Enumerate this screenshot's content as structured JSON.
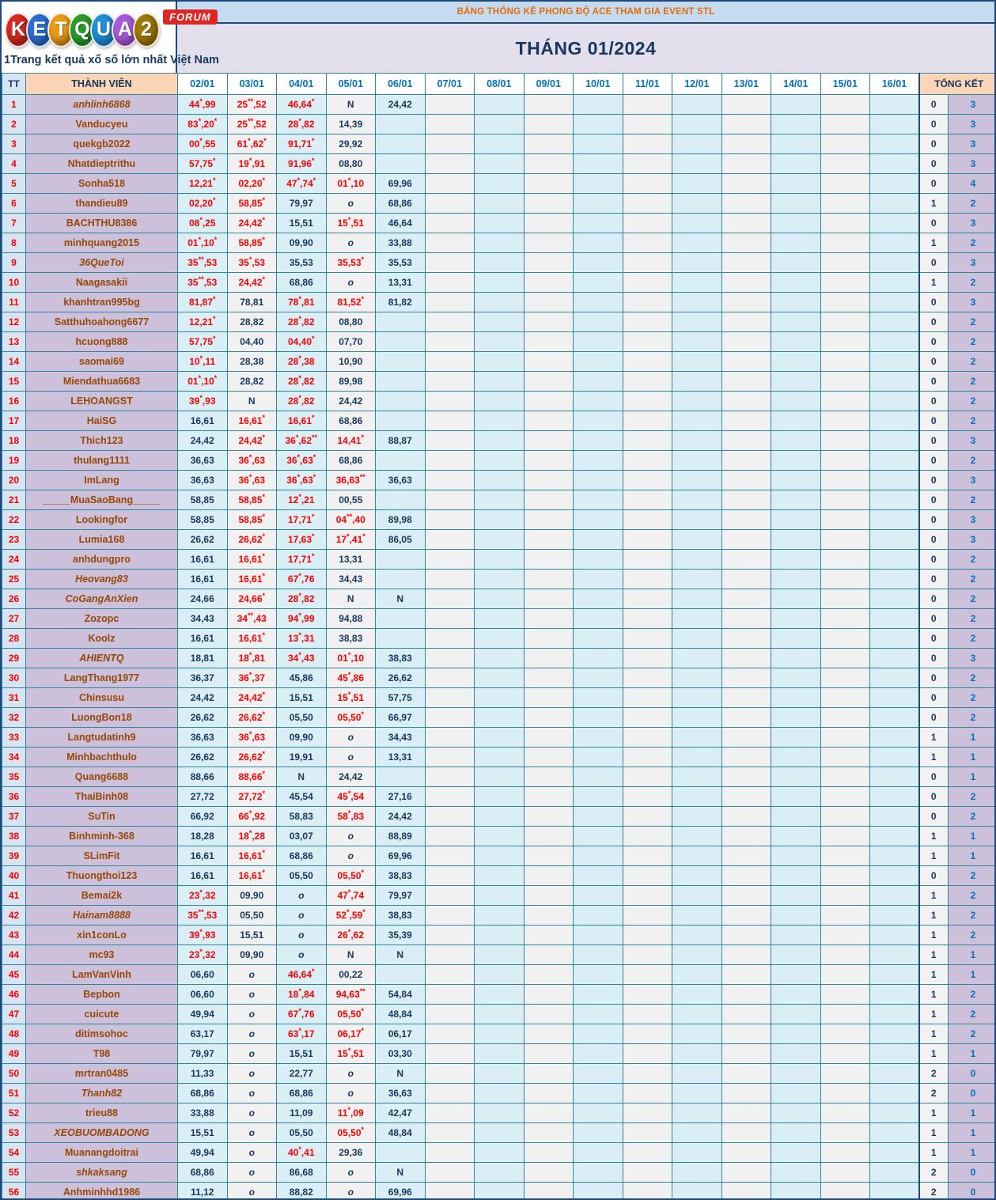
{
  "logo": {
    "letters": [
      {
        "ch": "K",
        "color": "#d42a1e"
      },
      {
        "ch": "E",
        "color": "#2a6fd4"
      },
      {
        "ch": "T",
        "color": "#e89c1a"
      },
      {
        "ch": "Q",
        "color": "#2a9b2a"
      },
      {
        "ch": "U",
        "color": "#1e8ed8"
      },
      {
        "ch": "A",
        "color": "#a85ad8"
      },
      {
        "ch": "2",
        "color": "#a07808"
      }
    ],
    "badge": "FORUM",
    "tagline": "1Trang kết quả xổ số lớn nhất Việt Nam"
  },
  "banner": {
    "title": "BẢNG THỐNG KÊ PHONG ĐỘ ACE THAM GIA EVENT STL",
    "month": "THÁNG 01/2024"
  },
  "colors": {
    "starred_value": "#FF0000",
    "plain_value": "#17375E",
    "member_name": "#974706",
    "date_header": "#0070C0",
    "grid": "#31859C",
    "summary_value": "#0070C0"
  },
  "table": {
    "tt_header": "TT",
    "member_header": "THÀNH VIÊN",
    "date_headers": [
      "02/01",
      "03/01",
      "04/01",
      "05/01",
      "06/01",
      "07/01",
      "08/01",
      "09/01",
      "10/01",
      "11/01",
      "12/01",
      "13/01",
      "14/01",
      "15/01",
      "16/01"
    ],
    "summary_header": "TỔNG KẾT",
    "rows": [
      {
        "tt": "1",
        "name": "anhlinh6868",
        "italic": true,
        "v": [
          "44*,99",
          "25**,52",
          "46,64*",
          "N",
          "24,42"
        ],
        "s1": "0",
        "s2": "3"
      },
      {
        "tt": "2",
        "name": "Vanducyeu",
        "italic": false,
        "v": [
          "83*,20*",
          "25**,52",
          "28*,82",
          "14,39",
          ""
        ],
        "s1": "0",
        "s2": "3"
      },
      {
        "tt": "3",
        "name": "quekgb2022",
        "italic": false,
        "v": [
          "00*,55",
          "61*,62*",
          "91,71*",
          "29,92",
          ""
        ],
        "s1": "0",
        "s2": "3"
      },
      {
        "tt": "4",
        "name": "Nhatdieptrithu",
        "italic": false,
        "v": [
          "57,75*",
          "19*,91",
          "91,96*",
          "08,80",
          ""
        ],
        "s1": "0",
        "s2": "3"
      },
      {
        "tt": "5",
        "name": "Sonha518",
        "italic": false,
        "v": [
          "12,21*",
          "02,20*",
          "47*,74*",
          "01*,10",
          "69,96"
        ],
        "s1": "0",
        "s2": "4"
      },
      {
        "tt": "6",
        "name": "thandieu89",
        "italic": false,
        "v": [
          "02,20*",
          "58,85*",
          "79,97",
          "o",
          "68,86"
        ],
        "s1": "1",
        "s2": "2"
      },
      {
        "tt": "7",
        "name": "BACHTHU8386",
        "italic": false,
        "v": [
          "08*,25",
          "24,42*",
          "15,51",
          "15*,51",
          "46,64"
        ],
        "s1": "0",
        "s2": "3"
      },
      {
        "tt": "8",
        "name": "minhquang2015",
        "italic": false,
        "v": [
          "01*,10*",
          "58,85*",
          "09,90",
          "o",
          "33,88"
        ],
        "s1": "1",
        "s2": "2"
      },
      {
        "tt": "9",
        "name": "36QueToi",
        "italic": true,
        "v": [
          "35**,53",
          "35*,53",
          "35,53",
          "35,53*",
          "35,53"
        ],
        "s1": "0",
        "s2": "3"
      },
      {
        "tt": "10",
        "name": "Naagasakii",
        "italic": false,
        "v": [
          "35**,53",
          "24,42*",
          "68,86",
          "o",
          "13,31"
        ],
        "s1": "1",
        "s2": "2"
      },
      {
        "tt": "11",
        "name": "khanhtran995bg",
        "italic": false,
        "v": [
          "81,87*",
          "78,81",
          "78*,81",
          "81,52*",
          "81,82"
        ],
        "s1": "0",
        "s2": "3"
      },
      {
        "tt": "12",
        "name": "Satthuhoahong6677",
        "italic": false,
        "v": [
          "12,21*",
          "28,82",
          "28*,82",
          "08,80",
          ""
        ],
        "s1": "0",
        "s2": "2"
      },
      {
        "tt": "13",
        "name": "hcuong888",
        "italic": false,
        "v": [
          "57,75*",
          "04,40",
          "04,40*",
          "07,70",
          ""
        ],
        "s1": "0",
        "s2": "2"
      },
      {
        "tt": "14",
        "name": "saomai69",
        "italic": false,
        "v": [
          "10*,11",
          "28,38",
          "28*,38",
          "10,90",
          ""
        ],
        "s1": "0",
        "s2": "2"
      },
      {
        "tt": "15",
        "name": "Miendathua6683",
        "italic": false,
        "v": [
          "01*,10*",
          "28,82",
          "28*,82",
          "89,98",
          ""
        ],
        "s1": "0",
        "s2": "2"
      },
      {
        "tt": "16",
        "name": "LEHOANGST",
        "italic": false,
        "v": [
          "39*,93",
          "N",
          "28*,82",
          "24,42",
          ""
        ],
        "s1": "0",
        "s2": "2"
      },
      {
        "tt": "17",
        "name": "HaiSG",
        "italic": false,
        "v": [
          "16,61",
          "16,61*",
          "16,61*",
          "68,86",
          ""
        ],
        "s1": "0",
        "s2": "2"
      },
      {
        "tt": "18",
        "name": "Thich123",
        "italic": false,
        "v": [
          "24,42",
          "24,42*",
          "36*,62**",
          "14,41*",
          "88,87"
        ],
        "s1": "0",
        "s2": "3"
      },
      {
        "tt": "19",
        "name": "thulang1111",
        "italic": false,
        "v": [
          "36,63",
          "36*,63",
          "36*,63*",
          "68,86",
          ""
        ],
        "s1": "0",
        "s2": "2"
      },
      {
        "tt": "20",
        "name": "ImLang",
        "italic": false,
        "v": [
          "36,63",
          "36*,63",
          "36*,63*",
          "36,63**",
          "36,63"
        ],
        "s1": "0",
        "s2": "3"
      },
      {
        "tt": "21",
        "name": "_____MuaSaoBang_____",
        "italic": false,
        "v": [
          "58,85",
          "58,85*",
          "12*,21",
          "00,55",
          ""
        ],
        "s1": "0",
        "s2": "2"
      },
      {
        "tt": "22",
        "name": "Lookingfor",
        "italic": false,
        "v": [
          "58,85",
          "58,85*",
          "17,71*",
          "04**,40",
          "89,98"
        ],
        "s1": "0",
        "s2": "3"
      },
      {
        "tt": "23",
        "name": "Lumia168",
        "italic": false,
        "v": [
          "26,62",
          "26,62*",
          "17,63*",
          "17*,41*",
          "86,05"
        ],
        "s1": "0",
        "s2": "3"
      },
      {
        "tt": "24",
        "name": "anhdungpro",
        "italic": false,
        "v": [
          "16,61",
          "16,61*",
          "17,71*",
          "13,31",
          ""
        ],
        "s1": "0",
        "s2": "2"
      },
      {
        "tt": "25",
        "name": "Heovang83",
        "italic": true,
        "v": [
          "16,61",
          "16,61*",
          "67*,76",
          "34,43",
          ""
        ],
        "s1": "0",
        "s2": "2"
      },
      {
        "tt": "26",
        "name": "CoGangAnXien",
        "italic": true,
        "v": [
          "24,66",
          "24,66*",
          "28*,82",
          "N",
          "N"
        ],
        "s1": "0",
        "s2": "2"
      },
      {
        "tt": "27",
        "name": "Zozopc",
        "italic": false,
        "v": [
          "34,43",
          "34**,43",
          "94*,99",
          "94,88",
          ""
        ],
        "s1": "0",
        "s2": "2"
      },
      {
        "tt": "28",
        "name": "Koolz",
        "italic": false,
        "v": [
          "16,61",
          "16,61*",
          "13*,31",
          "38,83",
          ""
        ],
        "s1": "0",
        "s2": "2"
      },
      {
        "tt": "29",
        "name": "AHIENTQ",
        "italic": true,
        "v": [
          "18,81",
          "18*,81",
          "34*,43",
          "01*,10",
          "38,83"
        ],
        "s1": "0",
        "s2": "3"
      },
      {
        "tt": "30",
        "name": "LangThang1977",
        "italic": false,
        "v": [
          "36,37",
          "36*,37",
          "45,86",
          "45*,86",
          "26,62"
        ],
        "s1": "0",
        "s2": "2"
      },
      {
        "tt": "31",
        "name": "Chinsusu",
        "italic": false,
        "v": [
          "24,42",
          "24,42*",
          "15,51",
          "15*,51",
          "57,75"
        ],
        "s1": "0",
        "s2": "2"
      },
      {
        "tt": "32",
        "name": "LuongBon18",
        "italic": false,
        "v": [
          "26,62",
          "26,62*",
          "05,50",
          "05,50*",
          "66,97"
        ],
        "s1": "0",
        "s2": "2"
      },
      {
        "tt": "33",
        "name": "Langtudatinh9",
        "italic": false,
        "v": [
          "36,63",
          "36*,63",
          "09,90",
          "o",
          "34,43"
        ],
        "s1": "1",
        "s2": "1"
      },
      {
        "tt": "34",
        "name": "Minhbachthulo",
        "italic": false,
        "v": [
          "26,62",
          "26,62*",
          "19,91",
          "o",
          "13,31"
        ],
        "s1": "1",
        "s2": "1"
      },
      {
        "tt": "35",
        "name": "Quang6688",
        "italic": false,
        "v": [
          "88,66",
          "88,66*",
          "N",
          "24,42",
          ""
        ],
        "s1": "0",
        "s2": "1"
      },
      {
        "tt": "36",
        "name": "ThaiBinh08",
        "italic": false,
        "v": [
          "27,72",
          "27,72*",
          "45,54",
          "45*,54",
          "27,16"
        ],
        "s1": "0",
        "s2": "2"
      },
      {
        "tt": "37",
        "name": "SuTin",
        "italic": false,
        "v": [
          "66,92",
          "66*,92",
          "58,83",
          "58*,83",
          "24,42"
        ],
        "s1": "0",
        "s2": "2"
      },
      {
        "tt": "38",
        "name": "Binhminh-368",
        "italic": false,
        "v": [
          "18,28",
          "18*,28",
          "03,07",
          "o",
          "88,89"
        ],
        "s1": "1",
        "s2": "1"
      },
      {
        "tt": "39",
        "name": "SLimFit",
        "italic": false,
        "v": [
          "16,61",
          "16,61*",
          "68,86",
          "o",
          "69,96"
        ],
        "s1": "1",
        "s2": "1"
      },
      {
        "tt": "40",
        "name": "Thuongthoi123",
        "italic": false,
        "v": [
          "16,61",
          "16,61*",
          "05,50",
          "05,50*",
          "38,83"
        ],
        "s1": "0",
        "s2": "2"
      },
      {
        "tt": "41",
        "name": "Bemai2k",
        "italic": false,
        "v": [
          "23*,32",
          "09,90",
          "o",
          "47*,74",
          "79,97"
        ],
        "s1": "1",
        "s2": "2"
      },
      {
        "tt": "42",
        "name": "Hainam8888",
        "italic": true,
        "v": [
          "35**,53",
          "05,50",
          "o",
          "52*,59*",
          "38,83"
        ],
        "s1": "1",
        "s2": "2"
      },
      {
        "tt": "43",
        "name": "xin1conLo",
        "italic": false,
        "v": [
          "39*,93",
          "15,51",
          "o",
          "26*,62",
          "35,39"
        ],
        "s1": "1",
        "s2": "2"
      },
      {
        "tt": "44",
        "name": "mc93",
        "italic": false,
        "v": [
          "23*,32",
          "09,90",
          "o",
          "N",
          "N"
        ],
        "s1": "1",
        "s2": "1"
      },
      {
        "tt": "45",
        "name": "LamVanVinh",
        "italic": false,
        "v": [
          "06,60",
          "o",
          "46,64*",
          "00,22",
          ""
        ],
        "s1": "1",
        "s2": "1"
      },
      {
        "tt": "46",
        "name": "Bepbon",
        "italic": false,
        "v": [
          "06,60",
          "o",
          "18*,84",
          "94,63**",
          "54,84"
        ],
        "s1": "1",
        "s2": "2"
      },
      {
        "tt": "47",
        "name": "cuicute",
        "italic": false,
        "v": [
          "49,94",
          "o",
          "67*,76",
          "05,50*",
          "48,84"
        ],
        "s1": "1",
        "s2": "2"
      },
      {
        "tt": "48",
        "name": "ditimsohoc",
        "italic": false,
        "v": [
          "63,17",
          "o",
          "63*,17",
          "06,17*",
          "06,17"
        ],
        "s1": "1",
        "s2": "2"
      },
      {
        "tt": "49",
        "name": "T98",
        "italic": false,
        "v": [
          "79,97",
          "o",
          "15,51",
          "15*,51",
          "03,30"
        ],
        "s1": "1",
        "s2": "1"
      },
      {
        "tt": "50",
        "name": "mrtran0485",
        "italic": false,
        "v": [
          "11,33",
          "o",
          "22,77",
          "o",
          "N"
        ],
        "s1": "2",
        "s2": "0"
      },
      {
        "tt": "51",
        "name": "Thanh82",
        "italic": true,
        "v": [
          "68,86",
          "o",
          "68,86",
          "o",
          "36,63"
        ],
        "s1": "2",
        "s2": "0"
      },
      {
        "tt": "52",
        "name": "trieu88",
        "italic": false,
        "v": [
          "33,88",
          "o",
          "11,09",
          "11*,09",
          "42,47"
        ],
        "s1": "1",
        "s2": "1"
      },
      {
        "tt": "53",
        "name": "XEOBUOMBADONG",
        "italic": true,
        "v": [
          "15,51",
          "o",
          "05,50",
          "05,50*",
          "48,84"
        ],
        "s1": "1",
        "s2": "1"
      },
      {
        "tt": "54",
        "name": "Muanangdoitrai",
        "italic": false,
        "v": [
          "49,94",
          "o",
          "40*,41",
          "29,36",
          ""
        ],
        "s1": "1",
        "s2": "1"
      },
      {
        "tt": "55",
        "name": "shkaksang",
        "italic": true,
        "v": [
          "68,86",
          "o",
          "86,68",
          "o",
          "N"
        ],
        "s1": "2",
        "s2": "0"
      },
      {
        "tt": "56",
        "name": "Anhminhhd1986",
        "italic": false,
        "v": [
          "11,12",
          "o",
          "88,82",
          "o",
          "69,96"
        ],
        "s1": "2",
        "s2": "0"
      }
    ]
  }
}
